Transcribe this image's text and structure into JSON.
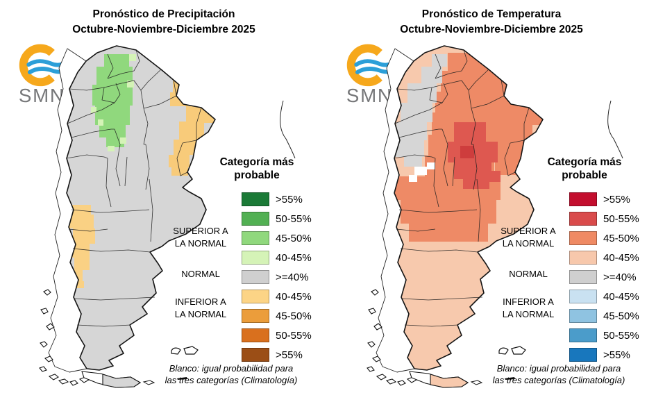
{
  "panels": [
    {
      "id": "precipitation",
      "title_line1": "Pronóstico de Precipitación",
      "title_line2": "Octubre-Noviembre-Diciembre 2025",
      "logo": {
        "text": "SMN",
        "sun_color": "#F6A81C",
        "wave_color": "#2C9FD8",
        "text_color": "#77787A"
      },
      "legend": {
        "heading_line1": "Categoría más",
        "heading_line2": "probable",
        "items": [
          {
            "label": ">55%",
            "color": "#1B7A37"
          },
          {
            "label": "50-55%",
            "color": "#52B053"
          },
          {
            "label": "45-50%",
            "color": "#90D87D"
          },
          {
            "label": "40-45%",
            "color": "#D5F3B7"
          },
          {
            "label": ">=40%",
            "color": "#CFCFCF"
          },
          {
            "label": "40-45%",
            "color": "#FCD486"
          },
          {
            "label": "45-50%",
            "color": "#EB9D3B"
          },
          {
            "label": "50-55%",
            "color": "#D9701E"
          },
          {
            "label": ">55%",
            "color": "#9B4E16"
          }
        ],
        "groups": [
          {
            "line1": "SUPERIOR A",
            "line2": "LA NORMAL"
          },
          {
            "line1": "NORMAL",
            "line2": ""
          },
          {
            "line1": "INFERIOR A",
            "line2": "LA NORMAL"
          }
        ],
        "footnote_line1": "Blanco: igual probabilidad para",
        "footnote_line2": "las tres categorías (Climatología)"
      },
      "map_colors": {
        "base": "#D6D6D6",
        "nw": "#90D87D",
        "nw_light": "#D5F3B7",
        "ne": "#F8CB7A",
        "w": "#FAD184",
        "outline": "#141414"
      }
    },
    {
      "id": "temperature",
      "title_line1": "Pronóstico de Temperatura",
      "title_line2": "Octubre-Noviembre-Diciembre 2025",
      "logo": {
        "text": "SMN",
        "sun_color": "#F6A81C",
        "wave_color": "#2C9FD8",
        "text_color": "#77787A"
      },
      "legend": {
        "heading_line1": "Categoría más",
        "heading_line2": "probable",
        "items": [
          {
            "label": ">55%",
            "color": "#C30E2E"
          },
          {
            "label": "50-55%",
            "color": "#D94B4B"
          },
          {
            "label": "45-50%",
            "color": "#EF8A64"
          },
          {
            "label": "40-45%",
            "color": "#F7C8AC"
          },
          {
            "label": ">=40%",
            "color": "#CFCFCF"
          },
          {
            "label": "40-45%",
            "color": "#C9E1F1"
          },
          {
            "label": "45-50%",
            "color": "#8FC3E1"
          },
          {
            "label": "50-55%",
            "color": "#4B9CCA"
          },
          {
            "label": ">55%",
            "color": "#1877BD"
          }
        ],
        "groups": [
          {
            "line1": "SUPERIOR A",
            "line2": "LA NORMAL"
          },
          {
            "line1": "NORMAL",
            "line2": ""
          },
          {
            "line1": "INFERIOR A",
            "line2": "LA NORMAL"
          }
        ],
        "footnote_line1": "Blanco: igual probabilidad para",
        "footnote_line2": "las tres categorías (Climatología)"
      },
      "map_colors": {
        "base": "#F7C9AD",
        "mid": "#EE8A66",
        "core": "#DE5850",
        "core_dark": "#CE3D3D",
        "nw": "#D6D6D6",
        "white_cells": "#FFFFFF",
        "outline": "#141414"
      }
    }
  ]
}
